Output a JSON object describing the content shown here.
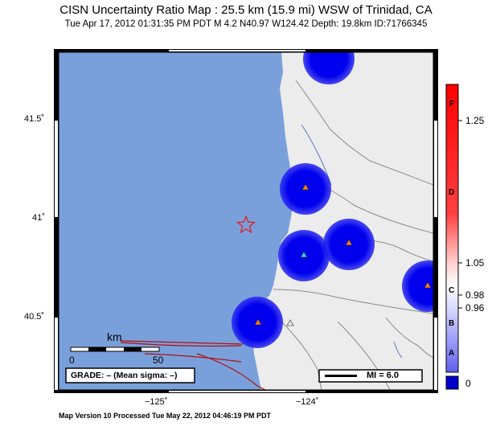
{
  "header": {
    "title": "CISN Uncertainty Ratio Map : 25.5 km (15.9 mi) WSW of Trinidad, CA",
    "subtitle": "Tue Apr 17, 2012 01:31:35 PM PDT    M 4.2    N40.97 W124.42    Depth: 19.8km    ID:71766345"
  },
  "axes": {
    "y_ticks": [
      {
        "label": "41.5˚",
        "value": 41.5
      },
      {
        "label": "41˚",
        "value": 41.0
      },
      {
        "label": "40.5˚",
        "value": 40.5
      }
    ],
    "x_ticks": [
      {
        "label": "−125˚",
        "value": -125
      },
      {
        "label": "−124˚",
        "value": -124
      }
    ]
  },
  "scale_bar": {
    "unit_label": "km",
    "labels": [
      "0",
      "50"
    ]
  },
  "grade_box": {
    "text": "GRADE: – (Mean sigma: –)"
  },
  "legend_box": {
    "text": "MI = 6.0"
  },
  "colorbar": {
    "letters": [
      "F",
      "D",
      "C",
      "B",
      "A"
    ],
    "values": [
      "1.25",
      "1.05",
      "0.98",
      "0.96",
      "0"
    ]
  },
  "footer": {
    "text": "Map Version 10 Processed Tue May 22, 2012 04:46:19 PM PDT"
  },
  "colors": {
    "ocean": "#7aa0dc",
    "land": "#ececec",
    "circle_blue": "#0000ee",
    "fault": "#b01010",
    "epicenter": "#e02020",
    "station_orange": "#f08020",
    "station_cyan": "#30d0d0"
  }
}
